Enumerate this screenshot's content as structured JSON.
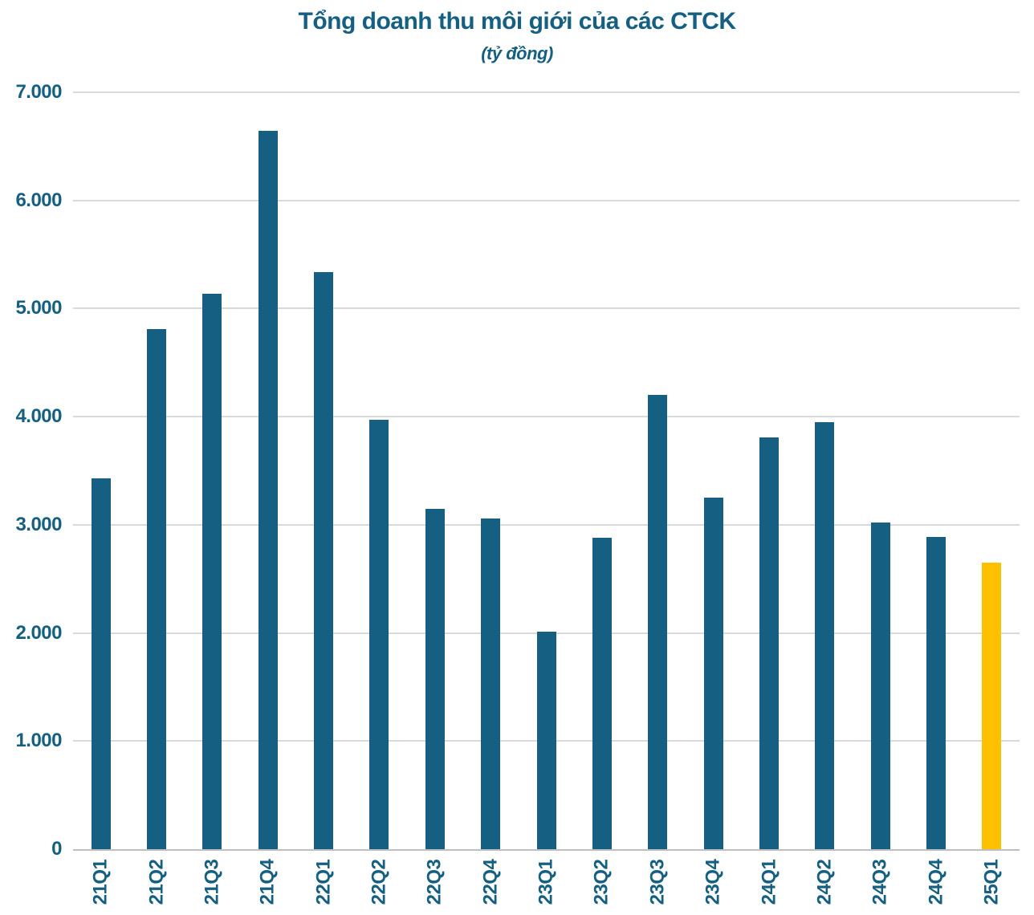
{
  "chart_data": {
    "type": "bar",
    "title": "Tổng doanh thu môi giới của các CTCK",
    "subtitle": "(tỷ đồng)",
    "categories": [
      "21Q1",
      "21Q2",
      "21Q3",
      "21Q4",
      "22Q1",
      "22Q2",
      "22Q3",
      "22Q4",
      "23Q1",
      "23Q2",
      "23Q3",
      "23Q4",
      "24Q1",
      "24Q2",
      "24Q3",
      "24Q4",
      "25Q1"
    ],
    "values": [
      3430,
      4810,
      5140,
      6640,
      5340,
      3970,
      3150,
      3060,
      2010,
      2880,
      4200,
      3250,
      3810,
      3950,
      3020,
      2890,
      2650
    ],
    "ylim": [
      0,
      7000
    ],
    "y_ticks": [
      0,
      1000,
      2000,
      3000,
      4000,
      5000,
      6000,
      7000
    ],
    "y_tick_labels": [
      "0",
      "1.000",
      "2.000",
      "3.000",
      "4.000",
      "5.000",
      "6.000",
      "7.000"
    ],
    "xlabel": "",
    "ylabel": "",
    "grid": true,
    "legend": "none",
    "bar_color": "#156082",
    "highlight_color": "#FFC000",
    "highlight_index": 16,
    "text_color": "#156082",
    "gridline_color": "#D9D9D9",
    "axis_line_color": "#BFBFBF",
    "background_color": "#FFFFFF"
  }
}
